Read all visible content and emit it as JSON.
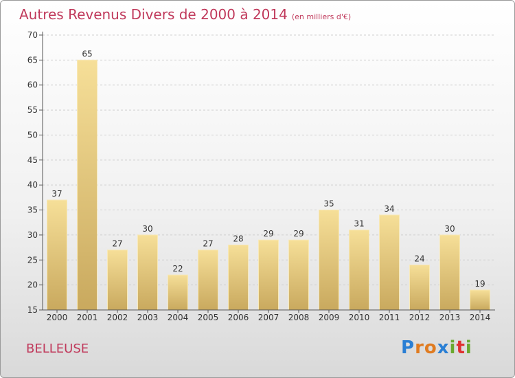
{
  "title": "Autres Revenus Divers de 2000 à 2014",
  "subtitle": "(en milliers d'€)",
  "commune": "BELLEUSE",
  "logo": {
    "letters": [
      "P",
      "r",
      "o",
      "x",
      "i",
      "t",
      "i"
    ],
    "colors": [
      "#2a7fd4",
      "#e07b20",
      "#e07b20",
      "#2a7fd4",
      "#6aa82e",
      "#e03030",
      "#6aa82e"
    ]
  },
  "colors": {
    "bar_top": "#f6df98",
    "bar_bottom": "#c9a95e",
    "text": "#c0395b"
  },
  "chart_data": {
    "type": "bar",
    "categories": [
      "2000",
      "2001",
      "2002",
      "2003",
      "2004",
      "2005",
      "2006",
      "2007",
      "2008",
      "2009",
      "2010",
      "2011",
      "2012",
      "2013",
      "2014"
    ],
    "values": [
      37,
      65,
      27,
      30,
      22,
      27,
      28,
      29,
      29,
      35,
      31,
      34,
      24,
      30,
      19
    ],
    "ylim": [
      15,
      70
    ],
    "yticks": [
      15,
      20,
      25,
      30,
      35,
      40,
      45,
      50,
      55,
      60,
      65,
      70
    ],
    "grid": "horizontal",
    "data_labels": true
  }
}
